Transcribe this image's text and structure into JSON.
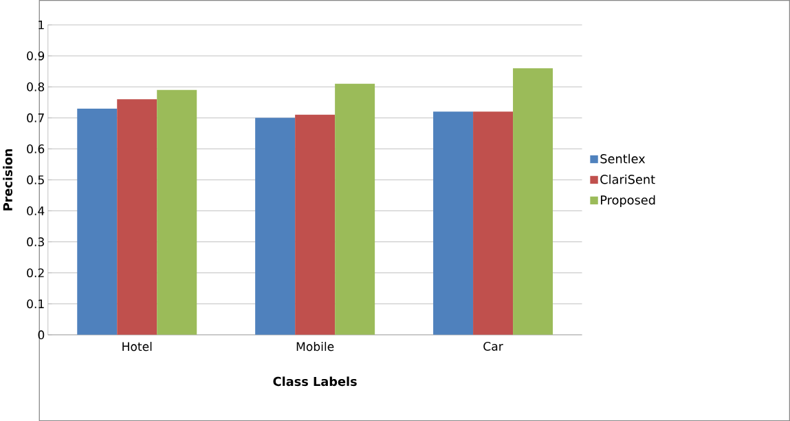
{
  "chart_data": {
    "type": "bar",
    "xlabel": "Class Labels",
    "ylabel": "Precision",
    "categories": [
      "Hotel",
      "Mobile",
      "Car"
    ],
    "series": [
      {
        "name": "Sentlex",
        "color": "#4f81bd",
        "values": [
          0.73,
          0.7,
          0.72
        ]
      },
      {
        "name": "ClariSent",
        "color": "#c0504d",
        "values": [
          0.76,
          0.71,
          0.72
        ]
      },
      {
        "name": "Proposed",
        "color": "#9bbb59",
        "values": [
          0.79,
          0.81,
          0.86
        ]
      }
    ],
    "ylim": [
      0,
      1
    ],
    "yticks": [
      0,
      0.1,
      0.2,
      0.3,
      0.4,
      0.5,
      0.6,
      0.7,
      0.8,
      0.9,
      1
    ],
    "grid": "y",
    "legend": "right"
  }
}
